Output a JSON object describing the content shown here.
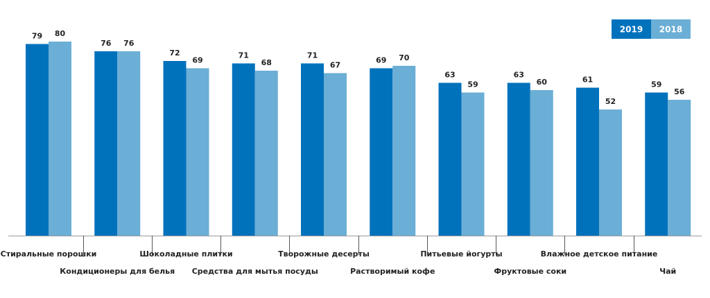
{
  "chart_data": {
    "type": "bar",
    "title": "",
    "xlabel": "",
    "ylabel": "",
    "ylim": [
      0,
      85
    ],
    "legend": "top-right",
    "colors": {
      "2019": "#0072bc",
      "2018": "#6baed6"
    },
    "categories": [
      "Стиральные порошки",
      "Кондиционеры для белья",
      "Шоколадные плитки",
      "Средства для мытья посуды",
      "Творожные десерты",
      "Растворимый кофе",
      "Питьевые йогурты",
      "Фруктовые соки",
      "Влажное детское питание",
      "Чай"
    ],
    "series": [
      {
        "name": "2019",
        "values": [
          79,
          76,
          72,
          71,
          71,
          69,
          63,
          63,
          61,
          59
        ]
      },
      {
        "name": "2018",
        "values": [
          80,
          76,
          69,
          68,
          67,
          70,
          59,
          60,
          52,
          56
        ]
      }
    ]
  }
}
